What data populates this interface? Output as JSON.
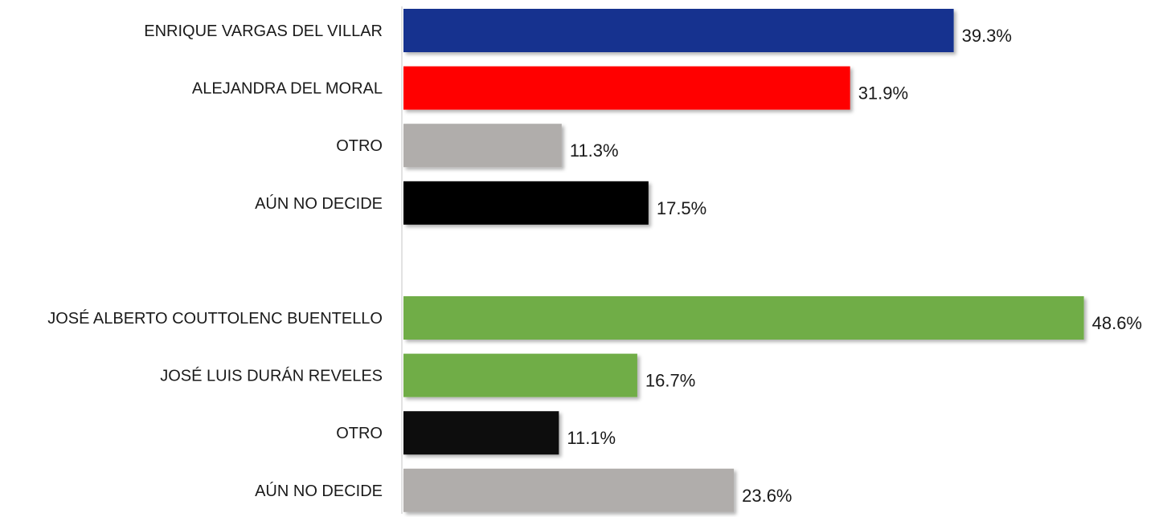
{
  "chart_data": {
    "type": "bar",
    "orientation": "horizontal",
    "title": "",
    "xlabel": "",
    "ylabel": "",
    "grid": false,
    "legend": "none",
    "value_suffix": "%",
    "xlim": [
      0,
      50
    ],
    "groups": [
      {
        "bars": [
          {
            "category": "ENRIQUE VARGAS DEL VILLAR",
            "value": 39.3,
            "label": "39.3%",
            "color": "#15318f"
          },
          {
            "category": "ALEJANDRA DEL MORAL",
            "value": 31.9,
            "label": "31.9%",
            "color": "#ff0000"
          },
          {
            "category": "OTRO",
            "value": 11.3,
            "label": "11.3%",
            "color": "#b0adab"
          },
          {
            "category": "AÚN NO DECIDE",
            "value": 17.5,
            "label": "17.5%",
            "color": "#000000"
          }
        ]
      },
      {
        "bars": [
          {
            "category": "JOSÉ ALBERTO COUTTOLENC BUENTELLO",
            "value": 48.6,
            "label": "48.6%",
            "color": "#70ad47"
          },
          {
            "category": "JOSÉ LUIS DURÁN REVELES",
            "value": 16.7,
            "label": "16.7%",
            "color": "#70ad47"
          },
          {
            "category": "OTRO",
            "value": 11.1,
            "label": "11.1%",
            "color": "#0d0d0d"
          },
          {
            "category": "AÚN NO DECIDE",
            "value": 23.6,
            "label": "23.6%",
            "color": "#b0adab"
          }
        ]
      }
    ]
  }
}
